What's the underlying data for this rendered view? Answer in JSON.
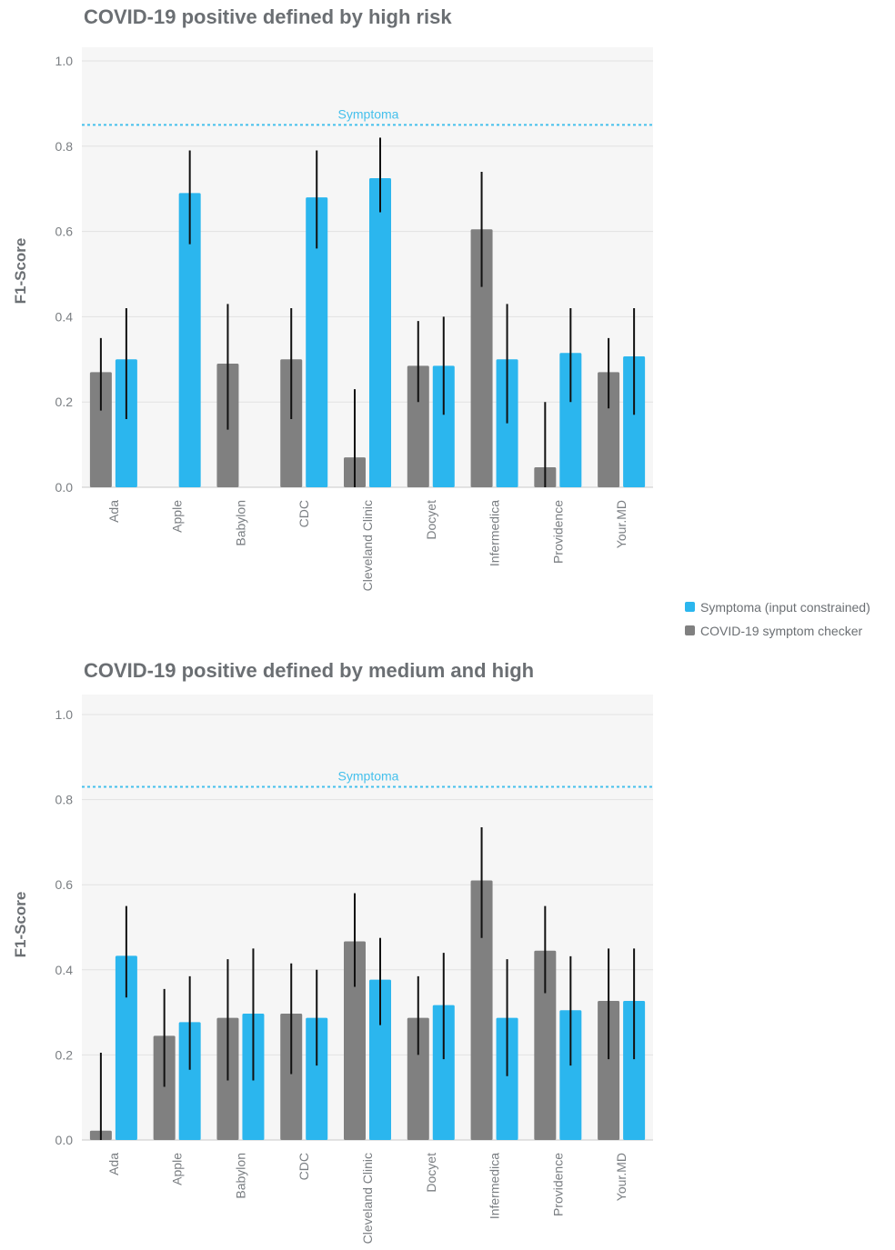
{
  "legend": {
    "items": [
      {
        "label": "Symptoma (input constrained)",
        "color": "#2bb6ee"
      },
      {
        "label": "COVID-19 symptom checker",
        "color": "#808080"
      }
    ]
  },
  "colors": {
    "symptoma": "#2bb6ee",
    "checker": "#808080",
    "reference": "#45c0ec",
    "plot_bg": "#f6f6f6",
    "grid": "#e2e2e2",
    "error_bar": "#111111"
  },
  "chart_data": [
    {
      "type": "bar",
      "title": "COVID-19 positive defined by high risk",
      "ylabel": "F1-Score",
      "ylim": [
        0,
        1.0
      ],
      "yticks": [
        "0.0",
        "0.2",
        "0.4",
        "0.6",
        "0.8",
        "1.0"
      ],
      "categories": [
        "Ada",
        "Apple",
        "Babylon",
        "CDC",
        "Cleveland Clinic",
        "Docyet",
        "Infermedica",
        "Providence",
        "Your.MD"
      ],
      "reference": {
        "label": "Symptoma",
        "value": 0.85
      },
      "series": [
        {
          "name": "COVID-19 symptom checker",
          "values": [
            0.27,
            null,
            0.29,
            0.3,
            0.07,
            0.285,
            0.605,
            0.047,
            0.27
          ],
          "error_low": [
            0.18,
            null,
            0.135,
            0.16,
            0.0,
            0.2,
            0.47,
            0.0,
            0.185
          ],
          "error_high": [
            0.35,
            null,
            0.43,
            0.42,
            0.23,
            0.39,
            0.74,
            0.2,
            0.35
          ]
        },
        {
          "name": "Symptoma (input constrained)",
          "values": [
            0.3,
            0.69,
            null,
            0.68,
            0.725,
            0.285,
            0.3,
            0.315,
            0.307
          ],
          "error_low": [
            0.16,
            0.57,
            null,
            0.56,
            0.645,
            0.17,
            0.15,
            0.2,
            0.17
          ],
          "error_high": [
            0.42,
            0.79,
            null,
            0.79,
            0.82,
            0.4,
            0.43,
            0.42,
            0.42
          ]
        }
      ]
    },
    {
      "type": "bar",
      "title": "COVID-19 positive defined by medium and high",
      "ylabel": "F1-Score",
      "ylim": [
        0,
        1.0
      ],
      "yticks": [
        "0.0",
        "0.2",
        "0.4",
        "0.6",
        "0.8",
        "1.0"
      ],
      "categories": [
        "Ada",
        "Apple",
        "Babylon",
        "CDC",
        "Cleveland Clinic",
        "Docyet",
        "Infermedica",
        "Providence",
        "Your.MD"
      ],
      "reference": {
        "label": "Symptoma",
        "value": 0.83
      },
      "series": [
        {
          "name": "COVID-19 symptom checker",
          "values": [
            0.022,
            0.245,
            0.287,
            0.297,
            0.467,
            0.287,
            0.61,
            0.445,
            0.327
          ],
          "error_low": [
            0.0,
            0.125,
            0.14,
            0.155,
            0.36,
            0.2,
            0.475,
            0.345,
            0.19
          ],
          "error_high": [
            0.205,
            0.355,
            0.425,
            0.415,
            0.58,
            0.385,
            0.735,
            0.55,
            0.45
          ]
        },
        {
          "name": "Symptoma (input constrained)",
          "values": [
            0.433,
            0.277,
            0.297,
            0.287,
            0.377,
            0.317,
            0.287,
            0.305,
            0.327
          ],
          "error_low": [
            0.335,
            0.165,
            0.14,
            0.175,
            0.27,
            0.19,
            0.15,
            0.175,
            0.19
          ],
          "error_high": [
            0.55,
            0.385,
            0.45,
            0.4,
            0.475,
            0.44,
            0.425,
            0.432,
            0.45
          ]
        }
      ]
    }
  ]
}
